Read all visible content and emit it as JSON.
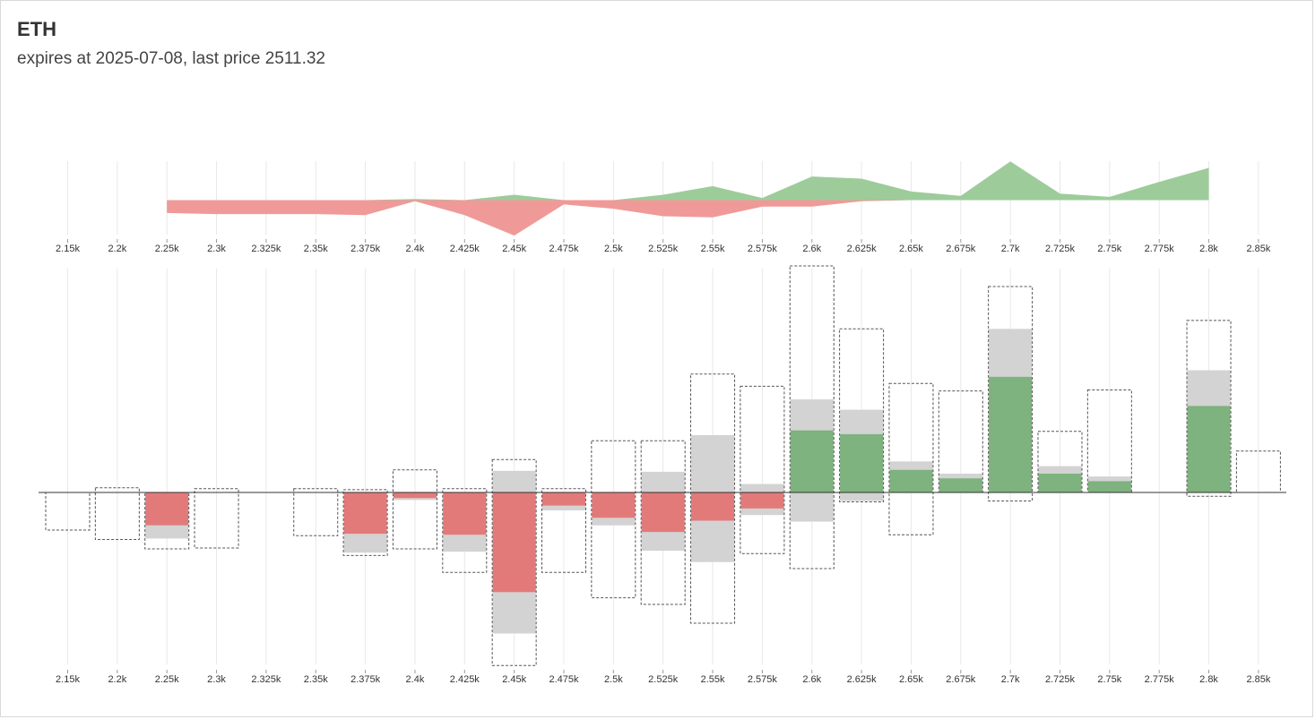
{
  "header": {
    "title": "ETH",
    "subtitle": "expires at 2025-07-08, last price 2511.32"
  },
  "colors": {
    "call": "#7eb27e",
    "call_area": "#9dcc9a",
    "put": "#e37a7a",
    "put_area": "#ef9a98",
    "neutral": "#d3d3d3",
    "grid": "#e8e8e8",
    "axis": "#333333"
  },
  "chart_data": [
    {
      "type": "area",
      "x": [
        2250,
        2300,
        2350,
        2375,
        2400,
        2425,
        2450,
        2475,
        2500,
        2525,
        2550,
        2575,
        2600,
        2625,
        2650,
        2675,
        2700,
        2725,
        2750,
        2775,
        2800
      ],
      "xticks": [
        "2.15k",
        "2.2k",
        "2.25k",
        "2.3k",
        "2.325k",
        "2.35k",
        "2.375k",
        "2.4k",
        "2.425k",
        "2.45k",
        "2.475k",
        "2.5k",
        "2.525k",
        "2.55k",
        "2.575k",
        "2.6k",
        "2.625k",
        "2.65k",
        "2.675k",
        "2.7k",
        "2.725k",
        "2.75k",
        "2.775k",
        "2.8k",
        "2.85k"
      ],
      "series": [
        {
          "values": [
            0,
            0,
            0,
            0,
            1,
            0,
            5,
            0,
            0,
            5,
            13,
            2,
            22,
            20,
            8,
            4,
            36,
            6,
            3,
            17,
            30
          ]
        },
        {
          "values": [
            -12,
            -13,
            -13,
            -14,
            -1,
            -14,
            -33,
            -4,
            -8,
            -15,
            -16,
            -6,
            -6,
            -1,
            0,
            0,
            0,
            0,
            0,
            0,
            0
          ]
        }
      ],
      "grid": true
    },
    {
      "type": "bar",
      "xticks": [
        "2.15k",
        "2.2k",
        "2.25k",
        "2.3k",
        "2.325k",
        "2.35k",
        "2.375k",
        "2.4k",
        "2.425k",
        "2.45k",
        "2.475k",
        "2.5k",
        "2.525k",
        "2.55k",
        "2.575k",
        "2.6k",
        "2.625k",
        "2.65k",
        "2.675k",
        "2.7k",
        "2.725k",
        "2.75k",
        "2.775k",
        "2.8k",
        "2.85k"
      ],
      "bars": [
        {
          "x": 2150,
          "fill": 0,
          "gray": [
            0,
            0
          ],
          "box": [
            -40,
            0
          ]
        },
        {
          "x": 2200,
          "fill": 0,
          "gray": [
            0,
            0
          ],
          "box": [
            -50,
            5
          ]
        },
        {
          "x": 2250,
          "fill": -35,
          "gray": [
            -49,
            -35
          ],
          "box": [
            -60,
            0
          ]
        },
        {
          "x": 2300,
          "fill": 0,
          "gray": [
            0,
            0
          ],
          "box": [
            -59,
            4
          ]
        },
        {
          "x": 2350,
          "fill": 0,
          "gray": [
            0,
            0
          ],
          "box": [
            -46,
            4
          ]
        },
        {
          "x": 2375,
          "fill": -44,
          "gray": [
            -64,
            -44
          ],
          "box": [
            -67,
            3
          ]
        },
        {
          "x": 2400,
          "fill": -6,
          "gray": [
            -8,
            -6
          ],
          "box": [
            -60,
            24
          ]
        },
        {
          "x": 2425,
          "fill": -45,
          "gray": [
            -63,
            -45
          ],
          "box": [
            -85,
            4
          ]
        },
        {
          "x": 2450,
          "fill": -106,
          "gray": [
            -150,
            23
          ],
          "box": [
            -184,
            35
          ]
        },
        {
          "x": 2475,
          "fill": -14,
          "gray": [
            -19,
            -14
          ],
          "box": [
            -85,
            4
          ]
        },
        {
          "x": 2500,
          "fill": -27,
          "gray": [
            -35,
            -27
          ],
          "box": [
            -112,
            55
          ]
        },
        {
          "x": 2525,
          "fill": -42,
          "gray": [
            -62,
            22
          ],
          "box": [
            -119,
            55
          ]
        },
        {
          "x": 2550,
          "fill": -30,
          "gray": [
            -74,
            61
          ],
          "box": [
            -139,
            126
          ]
        },
        {
          "x": 2575,
          "fill": -17,
          "gray": [
            -24,
            9
          ],
          "box": [
            -65,
            113
          ]
        },
        {
          "x": 2600,
          "fill": 66,
          "gray": [
            -31,
            99
          ],
          "box": [
            -81,
            241
          ]
        },
        {
          "x": 2625,
          "fill": 62,
          "gray": [
            -9,
            88
          ],
          "box": [
            -10,
            174
          ]
        },
        {
          "x": 2650,
          "fill": 24,
          "gray": [
            0,
            33
          ],
          "box": [
            -45,
            116
          ]
        },
        {
          "x": 2675,
          "fill": 15,
          "gray": [
            0,
            20
          ],
          "box": [
            0,
            108
          ]
        },
        {
          "x": 2700,
          "fill": 123,
          "gray": [
            0,
            174
          ],
          "box": [
            -9,
            219
          ]
        },
        {
          "x": 2725,
          "fill": 20,
          "gray": [
            0,
            28
          ],
          "box": [
            0,
            65
          ]
        },
        {
          "x": 2750,
          "fill": 12,
          "gray": [
            0,
            17
          ],
          "box": [
            0,
            109
          ]
        },
        {
          "x": 2800,
          "fill": 92,
          "gray": [
            0,
            130
          ],
          "box": [
            -4,
            183
          ]
        },
        {
          "x": 2850,
          "fill": 0,
          "gray": [
            0,
            0
          ],
          "box": [
            0,
            44
          ]
        }
      ],
      "grid": true
    }
  ]
}
